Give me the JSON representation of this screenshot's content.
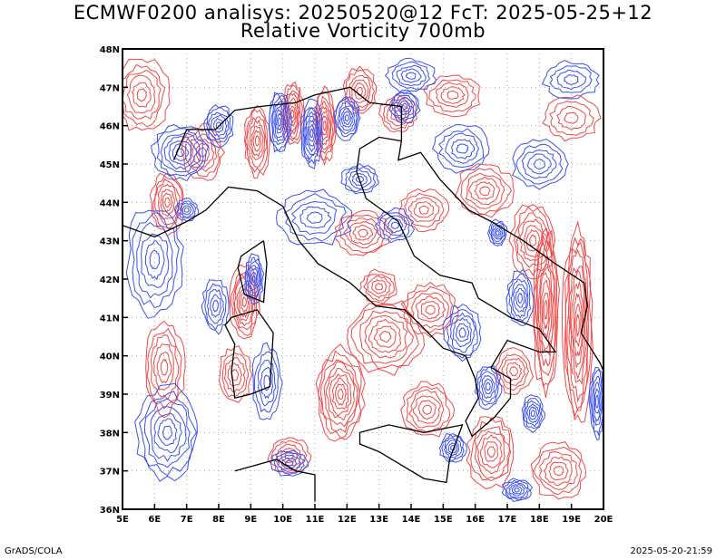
{
  "title": {
    "line1": "ECMWF0200 analisys: 20250520@12 FcT: 2025-05-25+12",
    "line2": "Relative Vorticity 700mb"
  },
  "map": {
    "lon_range": [
      5,
      20
    ],
    "lat_range": [
      36,
      48
    ],
    "lon_ticks": [
      "5E",
      "6E",
      "7E",
      "8E",
      "9E",
      "10E",
      "11E",
      "12E",
      "13E",
      "14E",
      "15E",
      "16E",
      "17E",
      "18E",
      "19E",
      "20E"
    ],
    "lat_ticks": [
      "36N",
      "37N",
      "38N",
      "39N",
      "40N",
      "41N",
      "42N",
      "43N",
      "44N",
      "45N",
      "46N",
      "47N",
      "48N"
    ],
    "grid": true,
    "colors": {
      "positive_contour": "#f04848",
      "negative_contour": "#3a50f0",
      "coastline": "#000000",
      "grid": "#aaaaaa",
      "zero_contour": "#b040b0"
    }
  },
  "footer": {
    "left": "GrADS/COLA",
    "right": "2025-05-20-21:59"
  }
}
